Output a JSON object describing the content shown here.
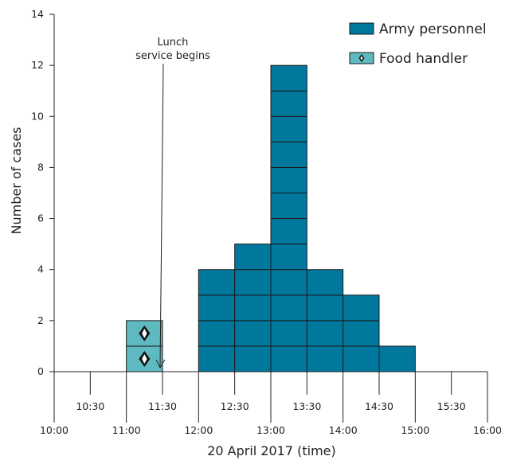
{
  "chart_data": {
    "type": "bar",
    "subtype": "epidemic-curve-stacked-cases",
    "xlabel": "20 April 2017 (time)",
    "ylabel": "Number of cases",
    "ylim": [
      0,
      14
    ],
    "y_ticks": [
      0,
      2,
      4,
      6,
      8,
      10,
      12,
      14
    ],
    "x_ticks_hours_lower": [
      "10:00",
      "11:00",
      "12:00",
      "13:00",
      "14:00",
      "15:00",
      "16:00"
    ],
    "x_ticks_half_upper": [
      "10:30",
      "11:30",
      "12:30",
      "13:30",
      "14:30",
      "15:30"
    ],
    "x_range": [
      "10:00",
      "16:00"
    ],
    "bin_width_minutes": 30,
    "categories": [
      "10:00",
      "10:30",
      "11:00",
      "11:30",
      "12:00",
      "12:30",
      "13:00",
      "13:30",
      "14:00",
      "14:30",
      "15:00",
      "15:30"
    ],
    "series": [
      {
        "name": "Army personnel",
        "color": "#00789e",
        "values": [
          0,
          0,
          0,
          0,
          4,
          5,
          12,
          4,
          3,
          1,
          0,
          0
        ]
      },
      {
        "name": "Food handler",
        "color": "#5fb9c1",
        "values": [
          0,
          0,
          2,
          0,
          0,
          0,
          0,
          0,
          0,
          0,
          0,
          0
        ]
      }
    ],
    "annotations": [
      {
        "text_lines": [
          "Lunch",
          "service begins"
        ],
        "at_time": "11:30"
      }
    ],
    "legend_position": "top-right",
    "grid": false
  }
}
